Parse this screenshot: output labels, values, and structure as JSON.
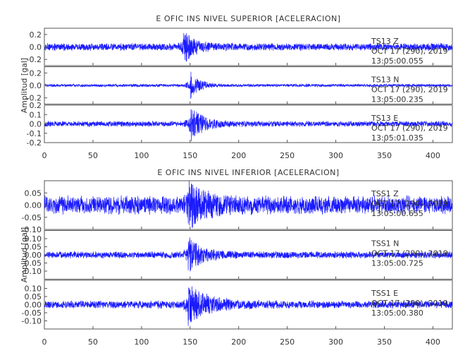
{
  "colors": {
    "trace": "#1a1aff",
    "axis": "#555555",
    "text": "#333333"
  },
  "chart_data": [
    {
      "type": "line",
      "title": "E OFIC INS NIVEL SUPERIOR [ACELERACION]",
      "ylabel": "Amplitud [gal]",
      "xlim": [
        0,
        420
      ],
      "xticks": [
        "0",
        "50",
        "100",
        "150",
        "200",
        "250",
        "300",
        "350",
        "400"
      ],
      "series": [
        {
          "channel": "TS13 Z",
          "date": "OCT 17 (290), 2019",
          "time": "13:05:00.055",
          "ylim": [
            -0.3,
            0.3
          ],
          "yticks": [
            "0.2",
            "0.0",
            "-0.2"
          ],
          "noise": 0.05,
          "peak": 0.25,
          "onset": 143,
          "decay": 10
        },
        {
          "channel": "TS13 N",
          "date": "OCT 17 (290), 2019",
          "time": "13:05:00.235",
          "ylim": [
            -0.3,
            0.3
          ],
          "yticks": [
            "0.2",
            "0.0",
            "-0.2"
          ],
          "noise": 0.02,
          "peak": 0.22,
          "onset": 150,
          "decay": 9
        },
        {
          "channel": "TS13 E",
          "date": "OCT 17 (290), 2019",
          "time": "13:05:01.035",
          "ylim": [
            -0.2,
            0.2
          ],
          "yticks": [
            "0.2",
            "0.1",
            "0.0",
            "-0.1",
            "-0.2"
          ],
          "noise": 0.025,
          "peak": 0.19,
          "onset": 150,
          "decay": 12
        }
      ]
    },
    {
      "type": "line",
      "title": "E OFIC INS NIVEL INFERIOR [ACELERACION]",
      "ylabel": "Amplitud [gal]",
      "xlim": [
        0,
        420
      ],
      "xticks": [
        "0",
        "50",
        "100",
        "150",
        "200",
        "250",
        "300",
        "350",
        "400"
      ],
      "series": [
        {
          "channel": "TSS1 Z",
          "date": "OCT 17 (290), 2019",
          "time": "13:05:00.655",
          "ylim": [
            -0.1,
            0.1
          ],
          "yticks": [
            "0.05",
            "0.00",
            "-0.05",
            "-0.10"
          ],
          "noise": 0.032,
          "peak": 0.08,
          "onset": 148,
          "decay": 18
        },
        {
          "channel": "TSS1 N",
          "date": "OCT 17 (290), 2019",
          "time": "13:05:00.725",
          "ylim": [
            -0.15,
            0.15
          ],
          "yticks": [
            "0.10",
            "0.05",
            "0.00",
            "-0.05",
            "-0.10"
          ],
          "noise": 0.018,
          "peak": 0.1,
          "onset": 148,
          "decay": 14
        },
        {
          "channel": "TSS1 E",
          "date": "OCT 17 (290), 2019",
          "time": "13:05:00.380",
          "ylim": [
            -0.15,
            0.15
          ],
          "yticks": [
            "0.10",
            "0.05",
            "0.00",
            "-0.05",
            "-0.10"
          ],
          "noise": 0.02,
          "peak": 0.12,
          "onset": 148,
          "decay": 20
        }
      ]
    }
  ]
}
